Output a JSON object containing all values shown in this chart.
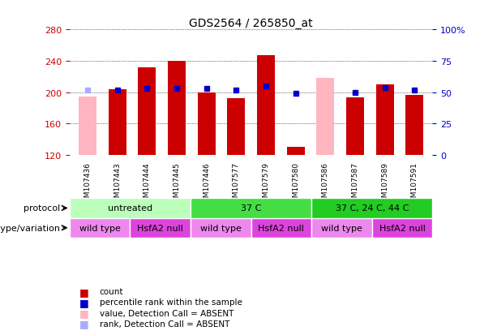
{
  "title": "GDS2564 / 265850_at",
  "samples": [
    "GSM107436",
    "GSM107443",
    "GSM107444",
    "GSM107445",
    "GSM107446",
    "GSM107577",
    "GSM107579",
    "GSM107580",
    "GSM107586",
    "GSM107587",
    "GSM107589",
    "GSM107591"
  ],
  "count_values": [
    null,
    204,
    232,
    240,
    200,
    192,
    247,
    130,
    null,
    194,
    210,
    197
  ],
  "count_absent": [
    195,
    null,
    null,
    null,
    null,
    null,
    null,
    null,
    218,
    null,
    null,
    null
  ],
  "percentile_values": [
    null,
    52,
    53,
    53,
    53,
    52,
    55,
    49,
    null,
    50,
    54,
    52
  ],
  "percentile_absent": [
    52,
    null,
    null,
    null,
    null,
    null,
    null,
    null,
    null,
    null,
    null,
    null
  ],
  "ylim_left": [
    120,
    280
  ],
  "ylim_right": [
    0,
    100
  ],
  "yticks_left": [
    120,
    160,
    200,
    240,
    280
  ],
  "yticks_right": [
    0,
    25,
    50,
    75,
    100
  ],
  "ytick_labels_right": [
    "0",
    "25",
    "50",
    "75",
    "100%"
  ],
  "bar_color": "#cc0000",
  "bar_absent_color": "#ffb6c1",
  "dot_color": "#0000cc",
  "dot_absent_color": "#aaaaff",
  "protocol_groups": [
    {
      "label": "untreated",
      "start": 0,
      "end": 4,
      "color": "#bbffbb"
    },
    {
      "label": "37 C",
      "start": 4,
      "end": 8,
      "color": "#44dd44"
    },
    {
      "label": "37 C, 24 C, 44 C",
      "start": 8,
      "end": 12,
      "color": "#22cc22"
    }
  ],
  "genotype_groups": [
    {
      "label": "wild type",
      "start": 0,
      "end": 2,
      "color": "#ee88ee"
    },
    {
      "label": "HsfA2 null",
      "start": 2,
      "end": 4,
      "color": "#dd44dd"
    },
    {
      "label": "wild type",
      "start": 4,
      "end": 6,
      "color": "#ee88ee"
    },
    {
      "label": "HsfA2 null",
      "start": 6,
      "end": 8,
      "color": "#dd44dd"
    },
    {
      "label": "wild type",
      "start": 8,
      "end": 10,
      "color": "#ee88ee"
    },
    {
      "label": "HsfA2 null",
      "start": 10,
      "end": 12,
      "color": "#dd44dd"
    }
  ],
  "left_ylabel_color": "#cc0000",
  "right_ylabel_color": "#0000cc",
  "background_color": "#ffffff",
  "plot_bg_color": "#ffffff",
  "sample_label_bg": "#cccccc",
  "legend_items": [
    {
      "color": "#cc0000",
      "label": "count"
    },
    {
      "color": "#0000cc",
      "label": "percentile rank within the sample"
    },
    {
      "color": "#ffb6c1",
      "label": "value, Detection Call = ABSENT"
    },
    {
      "color": "#aaaaff",
      "label": "rank, Detection Call = ABSENT"
    }
  ]
}
